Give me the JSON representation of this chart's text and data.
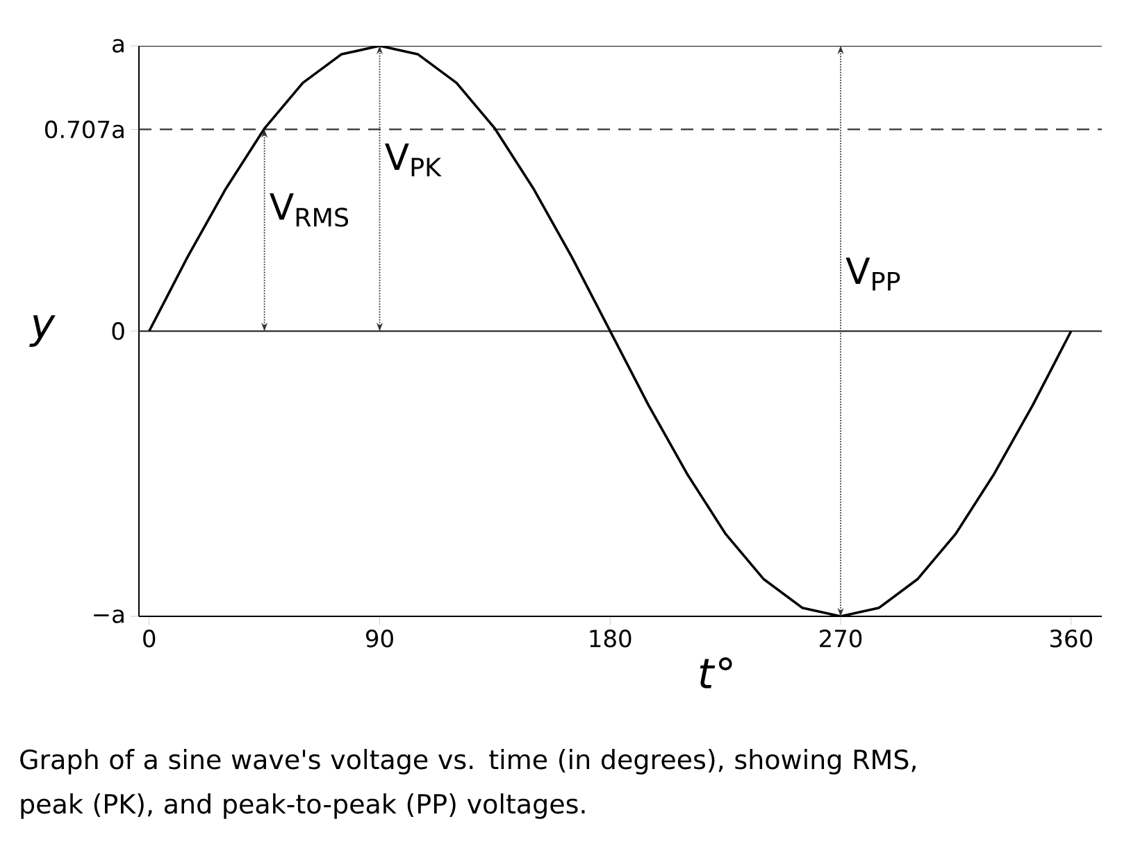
{
  "chart_data": {
    "type": "line",
    "xlabel": "*t*°",
    "ylabel": "y",
    "xlim": [
      -4,
      372
    ],
    "ylim": [
      -1,
      1
    ],
    "xticks": [
      0,
      90,
      180,
      270,
      360
    ],
    "yticks": [
      {
        "value": -1,
        "label": "−a"
      },
      {
        "value": 0,
        "label": "0"
      },
      {
        "value": 0.707,
        "label": "0.707a"
      },
      {
        "value": 1,
        "label": "a"
      }
    ],
    "grid": false,
    "marker": "none",
    "series": [
      {
        "color": "#000000",
        "line_style": "solid",
        "x": [
          0,
          15,
          30,
          45,
          60,
          75,
          90,
          105,
          120,
          135,
          150,
          165,
          180,
          195,
          210,
          225,
          240,
          255,
          270,
          285,
          300,
          315,
          330,
          345,
          360
        ],
        "values": [
          0,
          0.26,
          0.5,
          0.71,
          0.87,
          0.97,
          1,
          0.97,
          0.87,
          0.71,
          0.5,
          0.26,
          0,
          -0.26,
          -0.5,
          -0.71,
          -0.87,
          -0.97,
          -1,
          -0.97,
          -0.87,
          -0.71,
          -0.5,
          -0.26,
          0
        ]
      },
      {
        "name": "V$_{RMS}$",
        "color": "#333333",
        "line_style": "dotted",
        "x": [
          45,
          45
        ],
        "values": [
          0,
          0.707
        ]
      },
      {
        "name": "V$_{PK}$",
        "color": "#333333",
        "line_style": "dotted",
        "x": [
          90,
          90
        ],
        "values": [
          0,
          1
        ]
      },
      {
        "name": "V$_{PP}$",
        "color": "#333333",
        "line_style": "dotted",
        "x": [
          270,
          270
        ],
        "values": [
          -1,
          1
        ]
      }
    ],
    "ref_lines": [
      {
        "axis": "y",
        "value": 1,
        "color": "#333333",
        "line_style": "solid"
      },
      {
        "axis": "y",
        "value": 0.707,
        "color": "#333333",
        "line_style": "dashed"
      },
      {
        "axis": "y",
        "value": 0,
        "color": "#333333",
        "line_style": "solid"
      }
    ],
    "annotations": [
      "Graph of a sine wave's voltage vs. time (in degrees), showing RMS, peak (PK), and peak-to-peak (PP) voltages."
    ]
  }
}
